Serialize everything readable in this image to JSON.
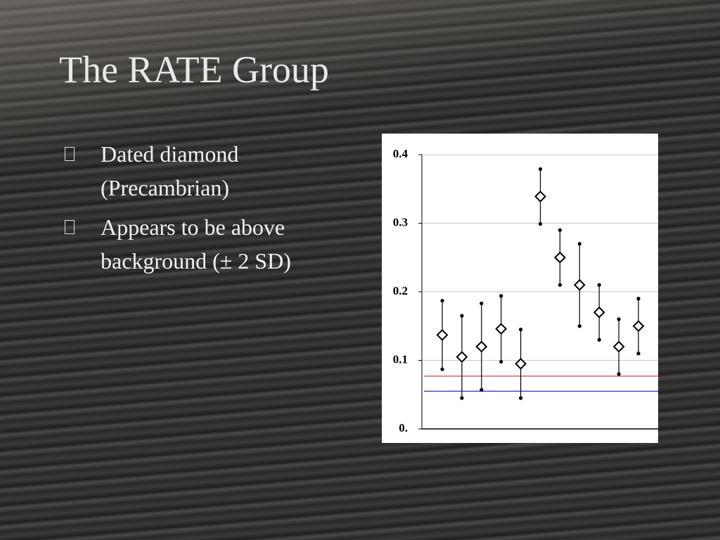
{
  "title": "The RATE Group",
  "bullets": [
    "Dated diamond (Precambrian)",
    "Appears to be above background (± 2 SD)"
  ],
  "chart_data": {
    "type": "errorbar",
    "categories": [
      null,
      null,
      null,
      null,
      null,
      null,
      null,
      null,
      null,
      null,
      null
    ],
    "values": [
      0.137,
      0.105,
      0.12,
      0.146,
      0.095,
      0.339,
      0.25,
      0.21,
      0.17,
      0.12,
      0.15
    ],
    "errors": [
      0.05,
      0.06,
      0.063,
      0.048,
      0.05,
      0.04,
      0.04,
      0.06,
      0.04,
      0.04,
      0.04
    ],
    "reference_lines": [
      {
        "value": 0.077,
        "color": "#d03030"
      },
      {
        "value": 0.055,
        "color": "#3030b0"
      }
    ],
    "ylim": [
      0,
      0.4
    ],
    "yticks": [
      {
        "value": 0,
        "label": "0."
      },
      0.1,
      0.2,
      0.3,
      0.4
    ],
    "grid": true
  }
}
